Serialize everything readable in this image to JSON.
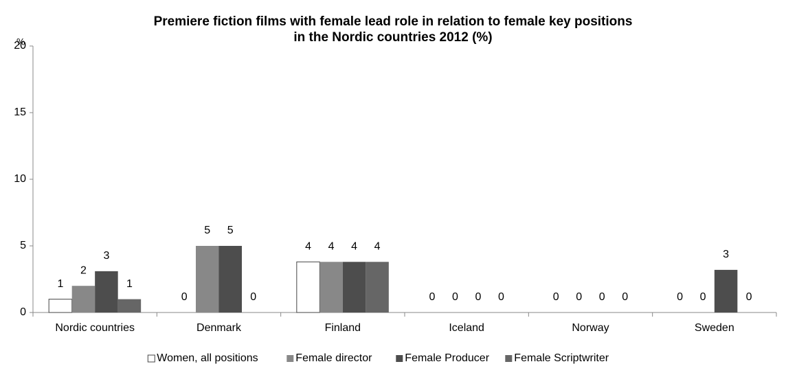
{
  "chart_data": {
    "type": "bar",
    "title": [
      "Premiere fiction films with female lead role in relation to female key positions",
      "in the Nordic countries 2012 (%)"
    ],
    "y_unit": "%",
    "categories": [
      "Nordic countries",
      "Denmark",
      "Finland",
      "Iceland",
      "Norway",
      "Sweden"
    ],
    "series": [
      {
        "name": "Women, all positions",
        "color": "#ffffff",
        "values": [
          1,
          0,
          3.8,
          0,
          0,
          0
        ],
        "value_labels": [
          "1",
          "0",
          "4",
          "0",
          "0",
          "0"
        ]
      },
      {
        "name": "Female director",
        "color": "#888888",
        "values": [
          2,
          5,
          3.8,
          0,
          0,
          0
        ],
        "value_labels": [
          "2",
          "5",
          "4",
          "0",
          "0",
          "0"
        ]
      },
      {
        "name": "Female Producer",
        "color": "#4d4d4d",
        "values": [
          3.1,
          5,
          3.8,
          0,
          0,
          3.2
        ],
        "value_labels": [
          "3",
          "5",
          "4",
          "0",
          "0",
          "3"
        ]
      },
      {
        "name": "Female Scriptwriter",
        "color": "#666666",
        "values": [
          1,
          0,
          3.8,
          0,
          0,
          0
        ],
        "value_labels": [
          "1",
          "0",
          "4",
          "0",
          "0",
          "0"
        ]
      }
    ],
    "ylim": [
      0,
      20
    ],
    "yticks": [
      0,
      5,
      10,
      15,
      20
    ],
    "grid": false,
    "legend": "bottom"
  }
}
